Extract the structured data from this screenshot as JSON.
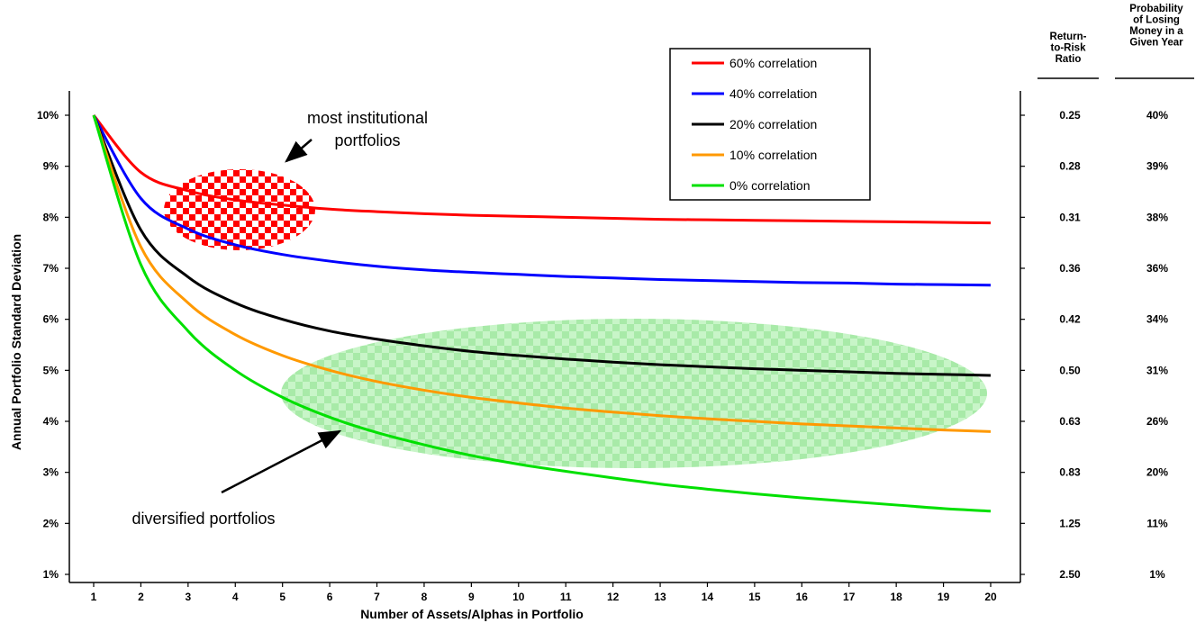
{
  "chart_data": {
    "type": "line",
    "title": "",
    "xlabel": "Number of Assets/Alphas in Portfolio",
    "ylabel": "Annual Portfolio Standard Deviation",
    "x": [
      1,
      2,
      3,
      4,
      5,
      6,
      7,
      8,
      9,
      10,
      11,
      12,
      13,
      14,
      15,
      16,
      17,
      18,
      19,
      20
    ],
    "xlim": [
      1,
      20
    ],
    "ylim": [
      1,
      10
    ],
    "y_unit": "%",
    "yticks": [
      "1%",
      "2%",
      "3%",
      "4%",
      "5%",
      "6%",
      "7%",
      "8%",
      "9%",
      "10%"
    ],
    "xticks": [
      "1",
      "2",
      "3",
      "4",
      "5",
      "6",
      "7",
      "8",
      "9",
      "10",
      "11",
      "12",
      "13",
      "14",
      "15",
      "16",
      "17",
      "18",
      "19",
      "20"
    ],
    "grid": false,
    "legend_position": "top-center",
    "series": [
      {
        "name": "60% correlation",
        "color": "#ff0000",
        "values": [
          10,
          8.88,
          8.52,
          8.34,
          8.24,
          8.16,
          8.11,
          8.07,
          8.04,
          8.02,
          8.0,
          7.98,
          7.96,
          7.95,
          7.94,
          7.93,
          7.92,
          7.91,
          7.9,
          7.89
        ]
      },
      {
        "name": "40% correlation",
        "color": "#0000ff",
        "values": [
          10,
          8.37,
          7.77,
          7.46,
          7.27,
          7.14,
          7.04,
          6.97,
          6.92,
          6.88,
          6.84,
          6.81,
          6.78,
          6.76,
          6.74,
          6.72,
          6.71,
          6.69,
          6.68,
          6.67
        ]
      },
      {
        "name": "20% correlation",
        "color": "#000000",
        "values": [
          10,
          7.75,
          6.83,
          6.32,
          6.0,
          5.77,
          5.61,
          5.48,
          5.37,
          5.29,
          5.22,
          5.16,
          5.11,
          5.07,
          5.03,
          5.0,
          4.97,
          4.94,
          4.92,
          4.9
        ]
      },
      {
        "name": "10% correlation",
        "color": "#ff9900",
        "values": [
          10,
          7.42,
          6.32,
          5.7,
          5.29,
          5.0,
          4.78,
          4.61,
          4.47,
          4.36,
          4.26,
          4.18,
          4.11,
          4.05,
          4.0,
          3.95,
          3.91,
          3.87,
          3.83,
          3.8
        ]
      },
      {
        "name": "0% correlation",
        "color": "#00e000",
        "values": [
          10,
          7.07,
          5.77,
          5.0,
          4.47,
          4.08,
          3.78,
          3.54,
          3.33,
          3.16,
          3.02,
          2.89,
          2.77,
          2.67,
          2.58,
          2.5,
          2.43,
          2.36,
          2.29,
          2.24
        ]
      }
    ],
    "right_table": {
      "headers": [
        [
          "Return-",
          "to-Risk",
          "Ratio"
        ],
        [
          "Probability",
          "of Losing",
          "Money in a",
          "Given Year"
        ]
      ],
      "rows": [
        {
          "at": 10,
          "ratio": "0.25",
          "prob": "40%"
        },
        {
          "at": 9,
          "ratio": "0.28",
          "prob": "39%"
        },
        {
          "at": 8,
          "ratio": "0.31",
          "prob": "38%"
        },
        {
          "at": 7,
          "ratio": "0.36",
          "prob": "36%"
        },
        {
          "at": 6,
          "ratio": "0.42",
          "prob": "34%"
        },
        {
          "at": 5,
          "ratio": "0.50",
          "prob": "31%"
        },
        {
          "at": 4,
          "ratio": "0.63",
          "prob": "26%"
        },
        {
          "at": 3,
          "ratio": "0.83",
          "prob": "20%"
        },
        {
          "at": 2,
          "ratio": "1.25",
          "prob": "11%"
        },
        {
          "at": 1,
          "ratio": "2.50",
          "prob": "1%"
        }
      ]
    },
    "annotations": [
      {
        "text_lines": [
          "most institutional",
          "portfolios"
        ],
        "color": "#ff0000",
        "pattern": "checkered"
      },
      {
        "text_lines": [
          "diversified portfolios"
        ],
        "color": "#b8f0b8",
        "pattern": "checkered"
      }
    ]
  }
}
